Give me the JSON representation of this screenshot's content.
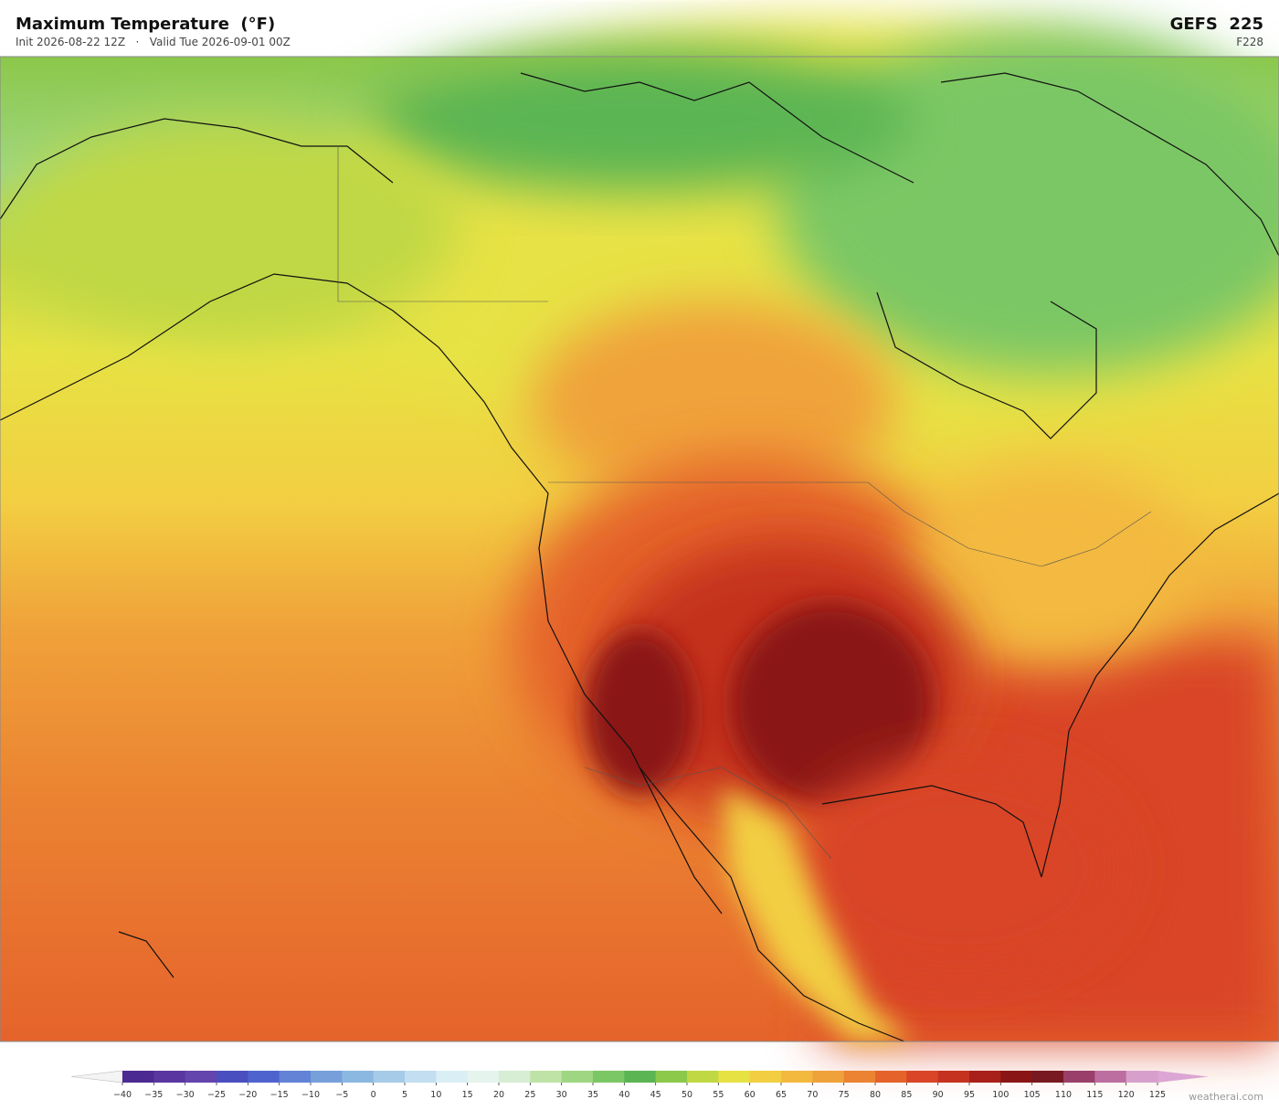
{
  "header": {
    "title": "Maximum Temperature  (°F)",
    "subtitle": "Init 2026-08-22 12Z   ·   Valid Tue 2026-09-01 00Z",
    "model": "GEFS  225",
    "forecast_hour": "F228"
  },
  "colorbar": {
    "ticks": [
      {
        "value": -40,
        "label": "−40"
      },
      {
        "value": -35,
        "label": "−35"
      },
      {
        "value": -30,
        "label": "−30"
      },
      {
        "value": -25,
        "label": "−25"
      },
      {
        "value": -20,
        "label": "−20"
      },
      {
        "value": -15,
        "label": "−15"
      },
      {
        "value": -10,
        "label": "−10"
      },
      {
        "value": -5,
        "label": "−5"
      },
      0,
      5,
      10,
      15,
      20,
      25,
      30,
      35,
      40,
      45,
      50,
      55,
      60,
      65,
      70,
      75,
      80,
      85,
      90,
      95,
      100,
      105,
      110,
      115,
      120,
      125
    ],
    "colors": [
      "#4b2a91",
      "#5a36a0",
      "#6444ad",
      "#4a4fc0",
      "#4f63cf",
      "#6283d6",
      "#779fda",
      "#8bb8e0",
      "#a6cbe8",
      "#c2def0",
      "#daeef5",
      "#e6f4ee",
      "#d7edd4",
      "#bfe3a6",
      "#9fd682",
      "#7cc765",
      "#5cb553",
      "#8cc84a",
      "#c0d844",
      "#e7e244",
      "#f2cf42",
      "#f3b93f",
      "#f0a23a",
      "#eb8332",
      "#e5632b",
      "#d94526",
      "#c5321f",
      "#a82019",
      "#8a1515",
      "#781820",
      "#9a3f6a",
      "#bd6ea0",
      "#d7a0cc"
    ],
    "under_color": "#f4f4f4",
    "over_color": "#dca6d4"
  },
  "footer": {
    "credit": "weatherai.com"
  }
}
